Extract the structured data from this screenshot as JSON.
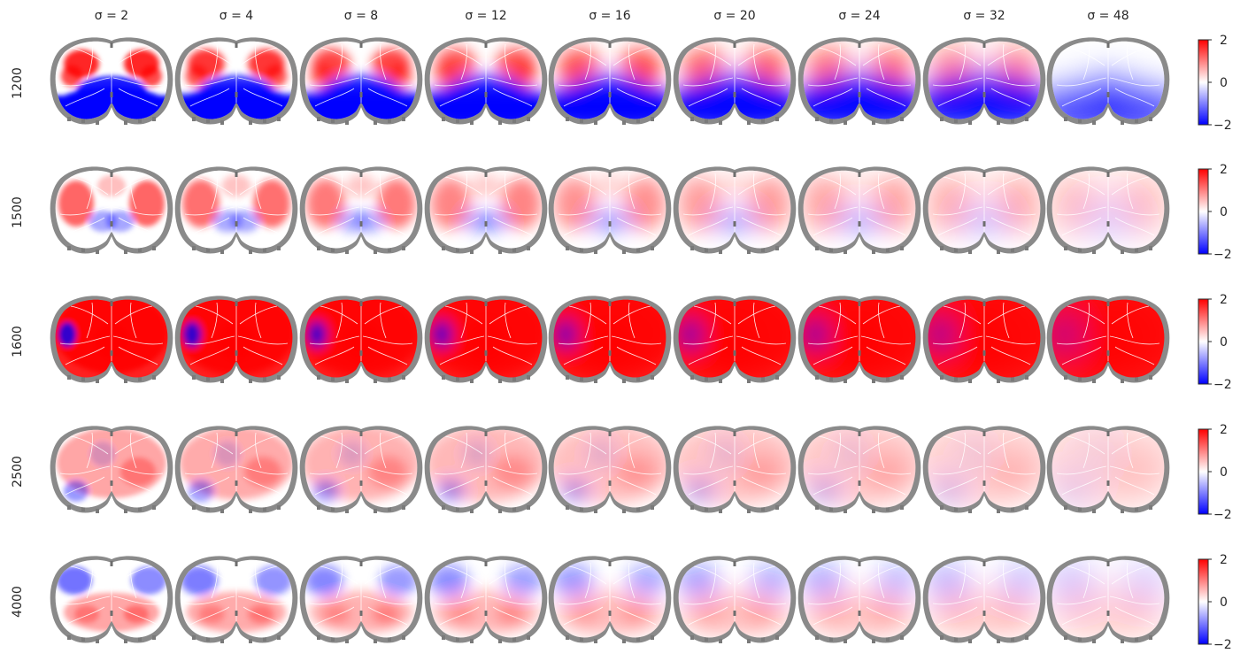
{
  "figure": {
    "column_titles": [
      "σ = 2",
      "σ = 4",
      "σ = 8",
      "σ = 12",
      "σ = 16",
      "σ = 20",
      "σ = 24",
      "σ = 32",
      "σ = 48"
    ],
    "sigmas": [
      2,
      4,
      8,
      12,
      16,
      20,
      24,
      32,
      48
    ],
    "row_labels": [
      "1200",
      "1500",
      "1600",
      "2500",
      "4000"
    ],
    "colorbar": {
      "ticks": [
        "2",
        "0",
        "−2"
      ],
      "range": [
        -2,
        2
      ],
      "colors": {
        "high": "#ff0000",
        "mid": "#ffffff",
        "low": "#0000ff"
      }
    },
    "colors": {
      "brain_outline": "#808080",
      "region_borders": "#ffffff",
      "text": "#262626"
    }
  }
}
